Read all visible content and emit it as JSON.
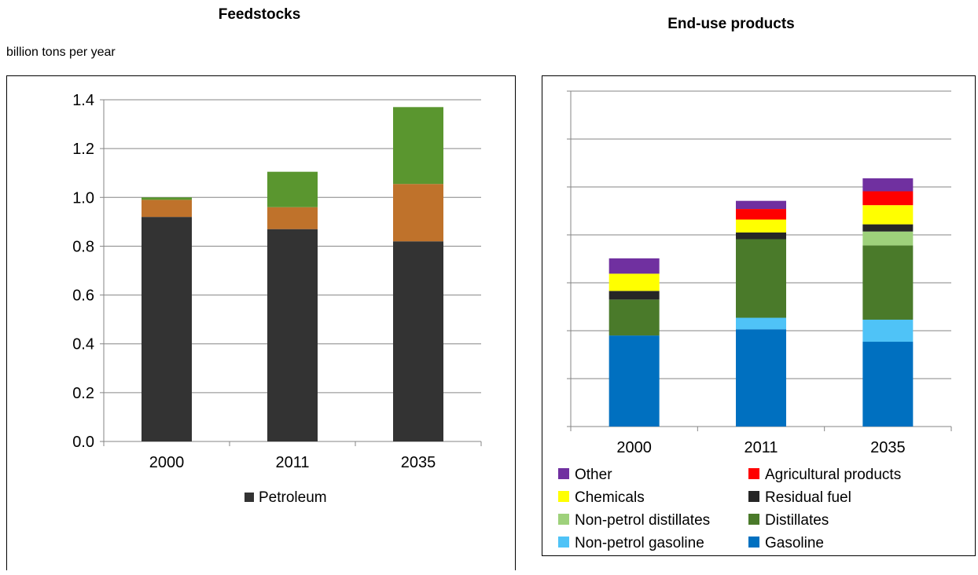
{
  "units_label": "billion tons per year",
  "chart_data": [
    {
      "type": "bar",
      "stacked": true,
      "title": "Feedstocks",
      "ylabel": "billion tons per year",
      "categories": [
        "2000",
        "2011",
        "2035"
      ],
      "ylim": [
        0,
        1.4
      ],
      "yticks": [
        "0.0",
        "0.2",
        "0.4",
        "0.6",
        "0.8",
        "1.0",
        "1.2",
        "1.4"
      ],
      "grid": true,
      "legend_position": "bottom",
      "series": [
        {
          "name": "Petroleum",
          "color": "#333333",
          "values": [
            0.92,
            0.87,
            0.82
          ]
        },
        {
          "color": "#bf722b",
          "values": [
            0.07,
            0.09,
            0.235
          ]
        },
        {
          "color": "#5a962f",
          "values": [
            0.01,
            0.145,
            0.315
          ]
        }
      ]
    },
    {
      "type": "bar",
      "stacked": true,
      "title": "End-use products",
      "categories": [
        "2000",
        "2011",
        "2035"
      ],
      "ylim": [
        0,
        7
      ],
      "grid": true,
      "legend_position": "bottom",
      "series": [
        {
          "name": "Gasoline",
          "color": "#0070c0",
          "values": [
            1.9,
            2.03,
            1.77
          ]
        },
        {
          "name": "Non-petrol gasoline",
          "color": "#4fc3f7",
          "values": [
            0.0,
            0.24,
            0.46
          ]
        },
        {
          "name": "Distillates",
          "color": "#4a7a2a",
          "values": [
            0.75,
            1.64,
            1.55
          ]
        },
        {
          "name": "Non-petrol distillates",
          "color": "#9ed17b",
          "values": [
            0.0,
            0.0,
            0.29
          ]
        },
        {
          "name": "Residual fuel",
          "color": "#262626",
          "values": [
            0.18,
            0.14,
            0.15
          ]
        },
        {
          "name": "Chemicals",
          "color": "#ffff00",
          "values": [
            0.36,
            0.27,
            0.4
          ]
        },
        {
          "name": "Agricultural products",
          "color": "#ff0000",
          "values": [
            0.0,
            0.22,
            0.29
          ]
        },
        {
          "name": "Other",
          "color": "#7030a0",
          "values": [
            0.32,
            0.17,
            0.27
          ]
        }
      ],
      "legend_order": [
        "Other",
        "Agricultural products",
        "Chemicals",
        "Residual fuel",
        "Non-petrol distillates",
        "Distillates",
        "Non-petrol gasoline",
        "Gasoline"
      ]
    }
  ]
}
